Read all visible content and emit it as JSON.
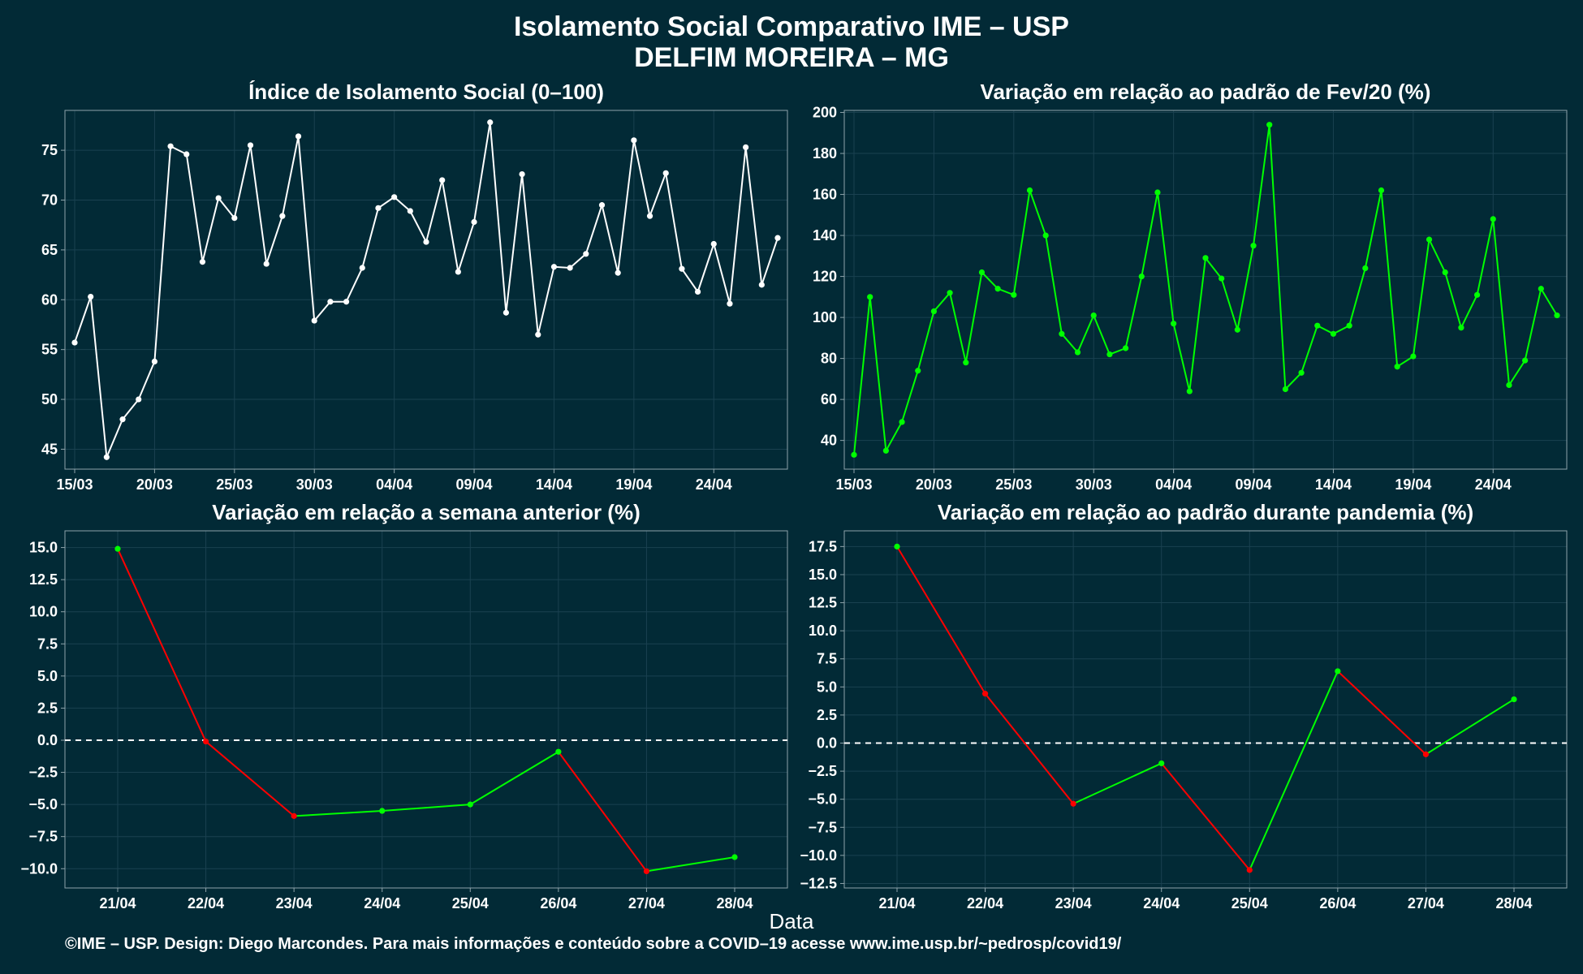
{
  "title_line1": "Isolamento Social Comparativo IME – USP",
  "title_line2": "DELFIM MOREIRA – MG",
  "x_axis_title": "Data",
  "footer": "©IME – USP. Design: Diego Marcondes. Para mais informações e conteúdo sobre a COVID–19 acesse www.ime.usp.br/~pedrosp/covid19/",
  "colors": {
    "background": "#022a36",
    "panel": "#022a36",
    "white": "#ffffff",
    "green": "#00ff00",
    "red": "#ff0000",
    "grid": "#1a4150"
  },
  "chart_data": [
    {
      "type": "line",
      "title": "Índice de Isolamento Social (0–100)",
      "x": [
        "15/03",
        "16/03",
        "17/03",
        "18/03",
        "19/03",
        "20/03",
        "21/03",
        "22/03",
        "23/03",
        "24/03",
        "25/03",
        "26/03",
        "27/03",
        "28/03",
        "29/03",
        "30/03",
        "31/03",
        "01/04",
        "02/04",
        "03/04",
        "04/04",
        "05/04",
        "06/04",
        "07/04",
        "08/04",
        "09/04",
        "10/04",
        "11/04",
        "12/04",
        "13/04",
        "14/04",
        "15/04",
        "16/04",
        "17/04",
        "18/04",
        "19/04",
        "20/04",
        "21/04",
        "22/04",
        "23/04",
        "24/04",
        "25/04",
        "26/04",
        "27/04",
        "28/04"
      ],
      "x_ticks": [
        "15/03",
        "20/03",
        "25/03",
        "30/03",
        "04/04",
        "09/04",
        "14/04",
        "19/04",
        "24/04"
      ],
      "series": [
        {
          "values": [
            55.7,
            60.3,
            44.2,
            48.0,
            50.0,
            53.8,
            75.4,
            74.6,
            63.8,
            70.2,
            68.2,
            75.5,
            63.6,
            68.4,
            76.4,
            57.9,
            59.8,
            59.8,
            63.2,
            69.2,
            70.3,
            68.9,
            65.8,
            72.0,
            62.8,
            67.8,
            77.8,
            58.7,
            72.6,
            56.5,
            63.3,
            63.2,
            64.6,
            69.5,
            62.7,
            76.0,
            68.4,
            72.7,
            63.1,
            60.8,
            65.6,
            59.6,
            75.3,
            61.5,
            66.2
          ]
        }
      ],
      "y_ticks": [
        45,
        50,
        55,
        60,
        65,
        70,
        75
      ],
      "ylim": [
        43,
        79
      ],
      "grid": true
    },
    {
      "type": "line",
      "title": "Variação em relação ao padrão de Fev/20 (%)",
      "x": [
        "15/03",
        "16/03",
        "17/03",
        "18/03",
        "19/03",
        "20/03",
        "21/03",
        "22/03",
        "23/03",
        "24/03",
        "25/03",
        "26/03",
        "27/03",
        "28/03",
        "29/03",
        "30/03",
        "31/03",
        "01/04",
        "02/04",
        "03/04",
        "04/04",
        "05/04",
        "06/04",
        "07/04",
        "08/04",
        "09/04",
        "10/04",
        "11/04",
        "12/04",
        "13/04",
        "14/04",
        "15/04",
        "16/04",
        "17/04",
        "18/04",
        "19/04",
        "20/04",
        "21/04",
        "22/04",
        "23/04",
        "24/04",
        "25/04",
        "26/04",
        "27/04",
        "28/04"
      ],
      "x_ticks": [
        "15/03",
        "20/03",
        "25/03",
        "30/03",
        "04/04",
        "09/04",
        "14/04",
        "19/04",
        "24/04"
      ],
      "series": [
        {
          "values": [
            33,
            110,
            35,
            49,
            74,
            103,
            112,
            78,
            122,
            114,
            111,
            162,
            140,
            92,
            83,
            101,
            82,
            85,
            120,
            161,
            97,
            64,
            129,
            119,
            94,
            135,
            194,
            65,
            73,
            96,
            92,
            96,
            124,
            162,
            76,
            81,
            138,
            122,
            95,
            111,
            148,
            67,
            79,
            114,
            101
          ]
        }
      ],
      "y_ticks": [
        40,
        60,
        80,
        100,
        120,
        140,
        160,
        180,
        200
      ],
      "ylim": [
        26,
        201
      ],
      "grid": true
    },
    {
      "type": "line",
      "title": "Variação em relação a semana anterior (%)",
      "categories": [
        "21/04",
        "22/04",
        "23/04",
        "24/04",
        "25/04",
        "26/04",
        "27/04",
        "28/04"
      ],
      "series": [
        {
          "values": [
            14.9,
            -0.1,
            -5.9,
            -5.5,
            -5.0,
            -0.9,
            -10.2,
            -9.1
          ]
        }
      ],
      "y_ticks": [
        "15.0",
        "12.5",
        "10.0",
        "7.5",
        "5.0",
        "2.5",
        "0.0",
        "−2.5",
        "−5.0",
        "−7.5",
        "−10.0"
      ],
      "ylim": [
        -11.5,
        16.3
      ],
      "reference_line": 0,
      "grid": true
    },
    {
      "type": "line",
      "title": "Variação em relação ao padrão durante pandemia (%)",
      "categories": [
        "21/04",
        "22/04",
        "23/04",
        "24/04",
        "25/04",
        "26/04",
        "27/04",
        "28/04"
      ],
      "series": [
        {
          "values": [
            17.5,
            4.4,
            -5.4,
            -1.8,
            -11.3,
            6.4,
            -1.0,
            3.9
          ]
        }
      ],
      "y_ticks": [
        "17.5",
        "15.0",
        "12.5",
        "10.0",
        "7.5",
        "5.0",
        "2.5",
        "0.0",
        "−2.5",
        "−5.0",
        "−7.5",
        "−10.0",
        "−12.5"
      ],
      "ylim": [
        -12.9,
        18.9
      ],
      "reference_line": 0,
      "grid": true
    }
  ]
}
